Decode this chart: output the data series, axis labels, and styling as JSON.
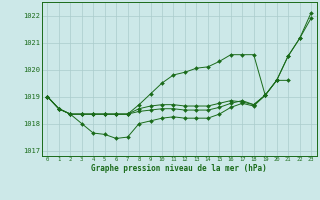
{
  "title": "Graphe pression niveau de la mer (hPa)",
  "background_color": "#cce8e8",
  "grid_color": "#aacccc",
  "line_color": "#1a6b1a",
  "ylim": [
    1016.8,
    1022.5
  ],
  "yticks": [
    1017,
    1018,
    1019,
    1020,
    1021,
    1022
  ],
  "x_ticks": [
    0,
    1,
    2,
    3,
    4,
    5,
    6,
    7,
    8,
    9,
    10,
    11,
    12,
    13,
    14,
    15,
    16,
    17,
    18,
    19,
    20,
    21,
    22,
    23
  ],
  "series": {
    "s1": [
      1019.0,
      1018.55,
      1018.35,
      1018.0,
      1017.65,
      1017.6,
      1017.45,
      1017.5,
      1018.0,
      1018.1,
      1018.2,
      1018.25,
      1018.2,
      1018.2,
      1018.2,
      1018.35,
      1018.6,
      1018.75,
      1018.65,
      1019.05,
      null,
      null,
      null,
      null
    ],
    "s2": [
      1019.0,
      1018.55,
      1018.35,
      1018.35,
      1018.35,
      1018.35,
      1018.35,
      1018.35,
      1018.45,
      1018.5,
      1018.55,
      1018.55,
      1018.5,
      1018.5,
      1018.5,
      1018.6,
      1018.75,
      1018.85,
      1018.7,
      1019.05,
      1019.6,
      1019.6,
      null,
      null
    ],
    "s3": [
      1019.0,
      1018.55,
      1018.35,
      1018.35,
      1018.35,
      1018.35,
      1018.35,
      1018.35,
      1018.55,
      1018.65,
      1018.7,
      1018.7,
      1018.65,
      1018.65,
      1018.65,
      1018.75,
      1018.85,
      1018.8,
      1018.7,
      1019.05,
      1019.6,
      1020.5,
      1021.15,
      1021.9
    ],
    "s4": [
      1019.0,
      1018.55,
      1018.35,
      1018.35,
      1018.35,
      1018.35,
      1018.35,
      1018.35,
      1018.7,
      1019.1,
      1019.5,
      1019.8,
      1019.9,
      1020.05,
      1020.1,
      1020.3,
      1020.55,
      1020.55,
      1020.55,
      1019.05,
      1019.6,
      1020.5,
      1021.15,
      1022.1
    ]
  }
}
